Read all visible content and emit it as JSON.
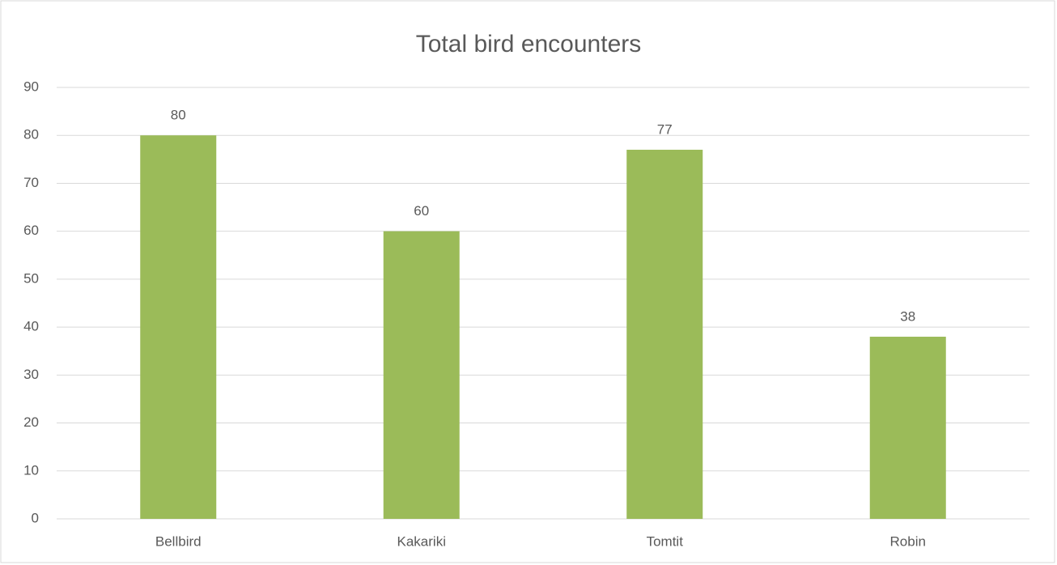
{
  "chart_data": {
    "type": "bar",
    "title": "Total bird encounters",
    "categories": [
      "Bellbird",
      "Kakariki",
      "Tomtit",
      "Robin"
    ],
    "values": [
      80,
      60,
      77,
      38
    ],
    "color": "#9bbb59",
    "ylim": [
      0,
      90
    ],
    "yticks": [
      0,
      10,
      20,
      30,
      40,
      50,
      60,
      70,
      80,
      90
    ],
    "grid": true,
    "data_labels": true
  }
}
